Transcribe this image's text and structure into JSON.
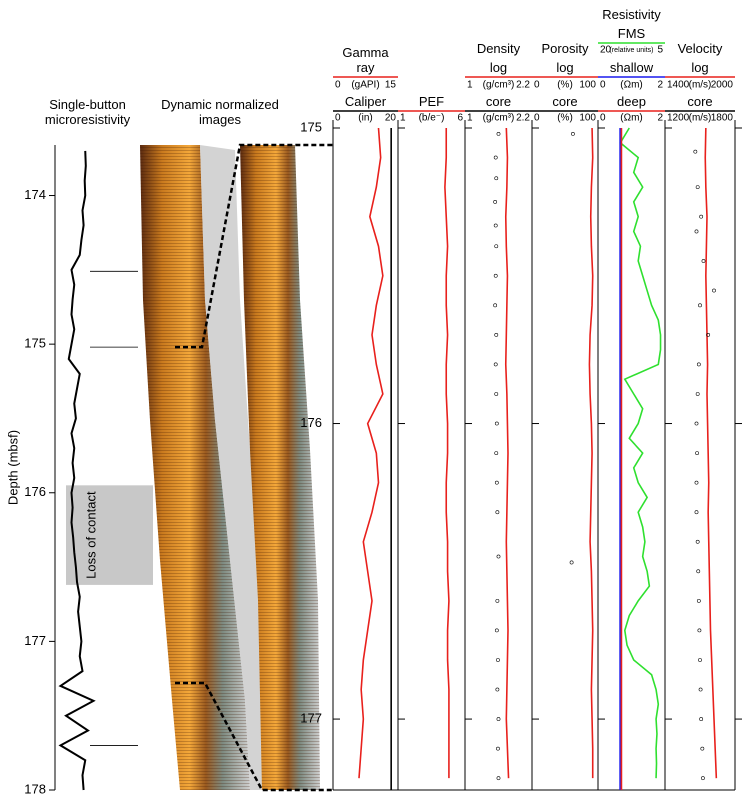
{
  "chart_data": [
    {
      "type": "line",
      "title": "Single-button microresistivity",
      "ylabel": "Depth (mbsf)",
      "ylim": [
        173.66,
        178
      ],
      "yticks": [
        174,
        175,
        176,
        177,
        178
      ],
      "xlim": [
        0,
        1
      ],
      "color": "#000000",
      "depth": [
        173.7,
        173.8,
        173.9,
        174.0,
        174.1,
        174.2,
        174.3,
        174.4,
        174.5,
        174.6,
        174.7,
        174.8,
        174.9,
        175.0,
        175.1,
        175.2,
        175.3,
        175.4,
        175.5,
        175.6,
        175.7,
        175.8,
        175.9,
        176.0,
        176.1,
        176.2,
        176.3,
        176.4,
        176.5,
        176.6,
        176.7,
        176.8,
        176.9,
        177.0,
        177.1,
        177.2,
        177.3,
        177.4,
        177.5,
        177.6,
        177.7,
        177.8,
        177.9,
        178.0
      ],
      "values": [
        0.55,
        0.56,
        0.54,
        0.55,
        0.5,
        0.52,
        0.48,
        0.45,
        0.3,
        0.35,
        0.32,
        0.3,
        0.35,
        0.3,
        0.25,
        0.45,
        0.4,
        0.35,
        0.38,
        0.3,
        0.35,
        0.32,
        0.35,
        0.3,
        0.32,
        0.3,
        0.33,
        0.35,
        0.38,
        0.4,
        0.45,
        0.42,
        0.45,
        0.48,
        0.45,
        0.5,
        0.1,
        0.7,
        0.2,
        0.6,
        0.1,
        0.55,
        0.5,
        0.52
      ],
      "markers": [
        174.51,
        175.02,
        177.7
      ],
      "annotation": {
        "text": "Loss of contact",
        "depth": [
          175.95,
          176.62
        ]
      }
    },
    {
      "type": "image",
      "title": "Dynamic normalized images",
      "ylim": [
        173.66,
        178
      ],
      "zoom": [
        175.02,
        177.28
      ]
    },
    {
      "type": "log",
      "ylim": [
        175,
        177.24
      ],
      "yticks": [
        175,
        176,
        177
      ],
      "tracks": [
        {
          "series": [
            {
              "name": "Gamma ray",
              "unit": "(gAPI)",
              "xlim": [
                0,
                15
              ],
              "color": "#e8201c",
              "kind": "line",
              "depth": [
                175.0,
                175.1,
                175.2,
                175.3,
                175.4,
                175.5,
                175.6,
                175.7,
                175.8,
                175.9,
                176.0,
                176.1,
                176.2,
                176.3,
                176.4,
                176.5,
                176.6,
                176.7,
                176.8,
                176.9,
                177.0,
                177.1,
                177.2
              ],
              "values": [
                10.5,
                11,
                10,
                8.5,
                10.5,
                11.5,
                10,
                9,
                10,
                11.5,
                8,
                10,
                10.5,
                9,
                7,
                8,
                9,
                8,
                7,
                6.5,
                7,
                6.5,
                6
              ]
            },
            {
              "name": "Caliper",
              "unit": "(in)",
              "xlim": [
                0,
                20
              ],
              "color": "#000000",
              "kind": "line",
              "depth": [
                175,
                177.24
              ],
              "values": [
                17.9,
                17.9
              ]
            }
          ]
        },
        {
          "series": [
            {
              "name": "PEF",
              "unit": "(b/e⁻)",
              "xlim": [
                1,
                6
              ],
              "color": "#e8201c",
              "kind": "line",
              "depth": [
                175.0,
                175.1,
                175.2,
                175.3,
                175.4,
                175.5,
                175.6,
                175.7,
                175.8,
                175.9,
                176.0,
                176.1,
                176.2,
                176.3,
                176.4,
                176.5,
                176.6,
                176.7,
                176.8,
                176.9,
                177.0,
                177.1,
                177.2
              ],
              "values": [
                4.6,
                4.6,
                4.5,
                4.6,
                4.7,
                4.6,
                4.6,
                4.7,
                4.6,
                4.6,
                4.7,
                4.7,
                4.6,
                4.6,
                4.7,
                4.7,
                4.8,
                4.7,
                4.7,
                4.8,
                4.8,
                4.8,
                4.8
              ]
            }
          ]
        },
        {
          "title": "Density",
          "series": [
            {
              "name": "log",
              "unit": "(g/cm³)",
              "xlim": [
                1,
                2.2
              ],
              "color": "#e8201c",
              "kind": "line",
              "depth": [
                175.0,
                175.1,
                175.2,
                175.3,
                175.4,
                175.5,
                175.6,
                175.7,
                175.8,
                175.9,
                176.0,
                176.1,
                176.2,
                176.3,
                176.4,
                176.5,
                176.6,
                176.7,
                176.8,
                176.9,
                177.0,
                177.1,
                177.2
              ],
              "values": [
                1.74,
                1.76,
                1.75,
                1.73,
                1.74,
                1.76,
                1.75,
                1.74,
                1.73,
                1.75,
                1.76,
                1.77,
                1.76,
                1.75,
                1.74,
                1.75,
                1.76,
                1.77,
                1.76,
                1.75,
                1.74,
                1.76,
                1.78
              ]
            },
            {
              "name": "core",
              "unit": "(g/cm³)",
              "xlim": [
                1,
                2.2
              ],
              "color": "#000000",
              "kind": "points",
              "depth": [
                175.02,
                175.1,
                175.17,
                175.25,
                175.33,
                175.4,
                175.5,
                175.6,
                175.7,
                175.8,
                175.9,
                176.0,
                176.1,
                176.2,
                176.3,
                176.45,
                176.6,
                176.7,
                176.8,
                176.9,
                177.0,
                177.1,
                177.2
              ],
              "values": [
                1.6,
                1.55,
                1.56,
                1.54,
                1.55,
                1.56,
                1.55,
                1.54,
                1.56,
                1.55,
                1.56,
                1.57,
                1.56,
                1.57,
                1.58,
                1.6,
                1.58,
                1.57,
                1.59,
                1.58,
                1.6,
                1.59,
                1.6
              ]
            }
          ]
        },
        {
          "title": "Porosity",
          "series": [
            {
              "name": "log",
              "unit": "(%)",
              "xlim": [
                0,
                100
              ],
              "color": "#e8201c",
              "kind": "line",
              "depth": [
                175.0,
                175.1,
                175.2,
                175.3,
                175.4,
                175.5,
                175.6,
                175.7,
                175.8,
                175.9,
                176.0,
                176.1,
                176.2,
                176.3,
                176.4,
                176.5,
                176.6,
                176.7,
                176.8,
                176.9,
                177.0,
                177.1,
                177.2
              ],
              "values": [
                91,
                92,
                90,
                89,
                90,
                92,
                91,
                88,
                87,
                88,
                90,
                91,
                90,
                89,
                88,
                90,
                91,
                92,
                91,
                90,
                91,
                92,
                92
              ]
            },
            {
              "name": "core",
              "unit": "(%)",
              "xlim": [
                0,
                100
              ],
              "color": "#000000",
              "kind": "points",
              "depth": [
                175.02,
                176.47
              ],
              "values": [
                62,
                60
              ]
            }
          ]
        },
        {
          "title": "Resistivity",
          "series": [
            {
              "name": "FMS",
              "unit": "(relative units)",
              "xlim": [
                20,
                5
              ],
              "color": "#2fe02f",
              "kind": "line",
              "depth": [
                175.0,
                175.05,
                175.1,
                175.15,
                175.2,
                175.25,
                175.3,
                175.35,
                175.4,
                175.45,
                175.5,
                175.55,
                175.6,
                175.65,
                175.7,
                175.75,
                175.8,
                175.85,
                175.9,
                175.95,
                176.0,
                176.05,
                176.1,
                176.15,
                176.2,
                176.25,
                176.3,
                176.35,
                176.4,
                176.45,
                176.5,
                176.55,
                176.6,
                176.65,
                176.7,
                176.75,
                176.8,
                176.85,
                176.9,
                176.95,
                177.0,
                177.05,
                177.1,
                177.15,
                177.2
              ],
              "values": [
                13,
                15,
                11,
                12,
                10,
                12,
                11,
                12,
                10.5,
                11,
                10,
                9,
                8,
                6.5,
                6,
                6,
                6.5,
                14,
                12,
                10,
                11,
                13,
                10,
                12,
                11,
                9,
                11,
                10,
                9.5,
                10,
                9,
                8.5,
                11,
                13,
                14,
                13.5,
                12,
                8,
                7,
                6.5,
                7,
                6.8,
                7,
                6.9,
                7
              ]
            },
            {
              "name": "shallow",
              "unit": "(Ωm)",
              "xlim": [
                0,
                2
              ],
              "color": "#1a1aee",
              "kind": "line",
              "depth": [
                175,
                177.24
              ],
              "values": [
                0.66,
                0.66
              ]
            },
            {
              "name": "deep",
              "unit": "(Ωm)",
              "xlim": [
                0,
                2
              ],
              "color": "#e8201c",
              "kind": "line",
              "depth": [
                175,
                177.24
              ],
              "values": [
                0.7,
                0.7
              ]
            }
          ]
        },
        {
          "title": "Velocity",
          "series": [
            {
              "name": "log",
              "unit": "(m/s)",
              "xlim": [
                1400,
                2000
              ],
              "color": "#e8201c",
              "kind": "line",
              "depth": [
                175.0,
                175.1,
                175.2,
                175.3,
                175.4,
                175.5,
                175.6,
                175.7,
                175.8,
                175.9,
                176.0,
                176.1,
                176.2,
                176.3,
                176.4,
                176.5,
                176.6,
                176.7,
                176.8,
                176.9,
                177.0,
                177.1,
                177.2
              ],
              "values": [
                1750,
                1745,
                1750,
                1760,
                1755,
                1750,
                1755,
                1760,
                1765,
                1760,
                1765,
                1770,
                1775,
                1770,
                1775,
                1780,
                1785,
                1790,
                1800,
                1810,
                1820,
                1830,
                1840
              ]
            },
            {
              "name": "core",
              "unit": "(m/s)",
              "xlim": [
                1200,
                1800
              ],
              "color": "#000000",
              "kind": "points",
              "depth": [
                175.08,
                175.2,
                175.3,
                175.35,
                175.45,
                175.55,
                175.6,
                175.7,
                175.8,
                175.9,
                176.0,
                176.1,
                176.2,
                176.3,
                176.4,
                176.5,
                176.6,
                176.7,
                176.8,
                176.9,
                177.0,
                177.1,
                177.2
              ],
              "values": [
                1460,
                1480,
                1510,
                1470,
                1530,
                1620,
                1500,
                1570,
                1490,
                1480,
                1470,
                1475,
                1470,
                1470,
                1480,
                1485,
                1490,
                1495,
                1500,
                1505,
                1510,
                1520,
                1525
              ]
            }
          ]
        }
      ]
    }
  ]
}
